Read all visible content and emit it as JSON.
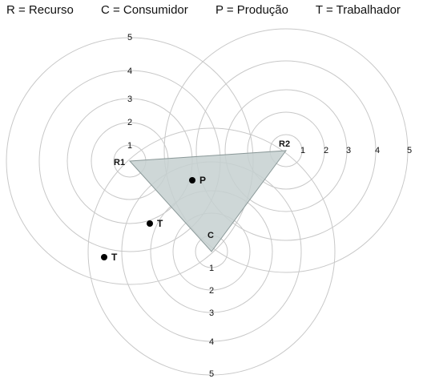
{
  "legend": [
    {
      "id": "recurso",
      "text": "R = Recurso"
    },
    {
      "id": "consumidor",
      "text": "C = Consumidor"
    },
    {
      "id": "producao",
      "text": "P = Produção"
    },
    {
      "id": "trabalhador",
      "text": "T = Trabalhador"
    }
  ],
  "centers": [
    {
      "id": "r1",
      "label": "R1"
    },
    {
      "id": "r2",
      "label": "R2"
    },
    {
      "id": "c",
      "label": "C"
    }
  ],
  "ring_labels": [
    "1",
    "2",
    "3",
    "4",
    "5"
  ],
  "points": [
    {
      "id": "p",
      "label": "P"
    },
    {
      "id": "t1",
      "label": "T"
    },
    {
      "id": "t2",
      "label": "T"
    }
  ],
  "colors": {
    "ring": "#c8c8c8",
    "triangle_fill": "#c5d0d0",
    "triangle_stroke": "#8a9898",
    "point": "#000000"
  }
}
